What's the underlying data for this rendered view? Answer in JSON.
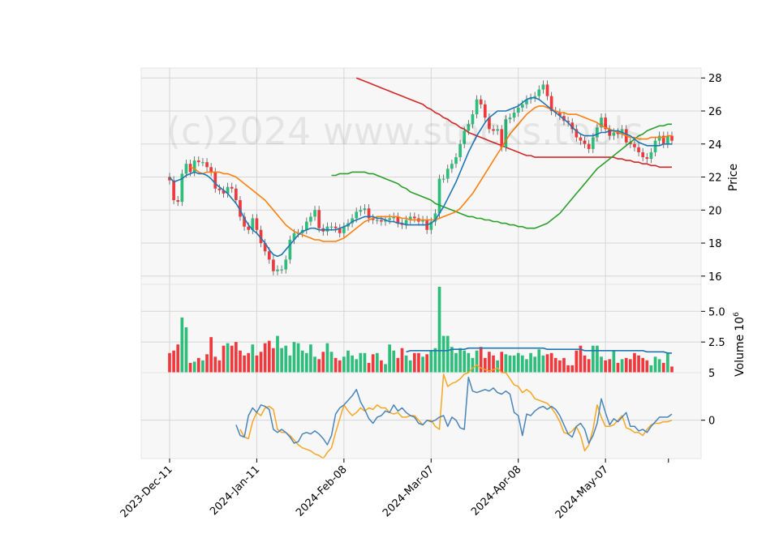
{
  "chart_data": {
    "type": "candlestick",
    "watermark": "(c)2024 www.stocks.tools",
    "colors": {
      "up": "#2ebd7a",
      "down": "#f0393d",
      "bg": "#f7f7f7",
      "grid": "#d6d6d6",
      "ma_short": "#1f77b4",
      "ma_mid": "#ff7f0e",
      "ma_long": "#2ca02c",
      "ma_200": "#d62728",
      "vol_ma": "#1f77b4",
      "macd": "#4a84b8",
      "signal": "#f5a623"
    },
    "x_tick_labels": [
      "2023-Dec-11",
      "2024-Jan-11",
      "2024-Feb-08",
      "2024-Mar-07",
      "2024-Apr-08",
      "2024-May-07"
    ],
    "x_tick_index": [
      0,
      21,
      42,
      63,
      84,
      105
    ],
    "price_panel": {
      "ylabel": "Price",
      "ylim": [
        15.5,
        28.6
      ],
      "yticks": [
        16,
        18,
        20,
        22,
        24,
        26,
        28
      ]
    },
    "volume_panel": {
      "ylabel": "Volume",
      "ylabel_exp": "6",
      "ylim": [
        0,
        7.2
      ],
      "yticks": [
        2.5,
        5.0
      ],
      "tick_labels": [
        "2.5",
        "5.0"
      ]
    },
    "macd_panel": {
      "ylim": [
        -2.5,
        3.1
      ],
      "yticks": [
        0
      ],
      "tick_labels": [
        "0"
      ],
      "top_label": "5"
    },
    "close": [
      21.8,
      20.6,
      20.5,
      22.2,
      22.8,
      22.3,
      23.0,
      22.9,
      22.9,
      22.6,
      22.3,
      21.3,
      21.2,
      21.0,
      21.4,
      21.3,
      20.6,
      19.6,
      19.0,
      18.8,
      19.5,
      18.8,
      18.0,
      17.5,
      17.0,
      16.3,
      16.4,
      16.4,
      17.0,
      18.2,
      18.6,
      18.6,
      18.8,
      19.3,
      19.6,
      20.0,
      18.9,
      18.7,
      19.0,
      19.0,
      18.9,
      18.6,
      19.0,
      19.2,
      19.5,
      19.9,
      20.0,
      20.1,
      19.5,
      19.4,
      19.4,
      19.3,
      19.4,
      19.5,
      19.6,
      19.2,
      19.1,
      19.4,
      19.6,
      19.5,
      19.3,
      19.4,
      18.8,
      19.3,
      19.8,
      21.9,
      21.9,
      22.5,
      22.8,
      23.2,
      24.0,
      24.8,
      25.2,
      25.8,
      26.7,
      26.4,
      25.6,
      24.9,
      24.8,
      24.9,
      23.8,
      25.5,
      25.6,
      25.9,
      26.2,
      26.4,
      26.7,
      26.8,
      26.9,
      27.3,
      27.6,
      26.9,
      26.0,
      25.9,
      25.7,
      25.4,
      25.3,
      24.9,
      24.4,
      24.2,
      24.0,
      23.7,
      24.4,
      25.0,
      25.6,
      24.9,
      24.5,
      24.7,
      24.6,
      24.9,
      24.1,
      24.0,
      23.8,
      23.5,
      23.2,
      23.1,
      23.5,
      24.2,
      24.5,
      24.0,
      24.5,
      24.2
    ],
    "open": [
      22.0,
      21.8,
      20.6,
      20.5,
      22.2,
      22.8,
      22.3,
      23.0,
      22.9,
      22.9,
      22.6,
      22.3,
      21.3,
      21.2,
      21.0,
      21.4,
      21.3,
      20.6,
      19.6,
      19.0,
      18.8,
      19.5,
      18.8,
      18.0,
      17.5,
      17.0,
      16.3,
      16.4,
      16.4,
      17.0,
      18.2,
      18.6,
      18.6,
      18.8,
      19.3,
      19.6,
      20.0,
      18.9,
      18.7,
      19.0,
      19.0,
      18.9,
      18.6,
      19.0,
      19.2,
      19.5,
      19.9,
      20.0,
      20.1,
      19.5,
      19.4,
      19.4,
      19.3,
      19.4,
      19.5,
      19.6,
      19.2,
      19.1,
      19.4,
      19.6,
      19.5,
      19.3,
      19.4,
      18.8,
      19.3,
      19.8,
      21.9,
      21.9,
      22.5,
      22.8,
      23.2,
      24.0,
      24.8,
      25.2,
      25.8,
      26.7,
      26.4,
      25.6,
      24.9,
      24.8,
      24.9,
      23.8,
      25.5,
      25.6,
      25.9,
      26.2,
      26.4,
      26.7,
      26.8,
      26.9,
      27.3,
      27.6,
      26.9,
      26.0,
      25.9,
      25.7,
      25.4,
      25.3,
      24.9,
      24.4,
      24.2,
      24.0,
      23.7,
      24.4,
      25.0,
      25.6,
      24.9,
      24.5,
      24.7,
      24.6,
      24.9,
      24.1,
      24.0,
      23.8,
      23.5,
      23.2,
      23.1,
      23.5,
      24.2,
      24.5,
      24.0,
      24.5
    ],
    "volume": [
      1.6,
      1.8,
      2.3,
      4.5,
      3.7,
      0.8,
      0.9,
      1.2,
      1.0,
      1.5,
      2.9,
      1.3,
      1.0,
      2.2,
      2.4,
      2.2,
      2.5,
      1.8,
      1.4,
      1.6,
      2.3,
      1.4,
      1.7,
      2.4,
      2.6,
      2.0,
      3.0,
      2.0,
      2.2,
      1.4,
      2.5,
      2.4,
      1.8,
      1.6,
      2.3,
      1.3,
      1.1,
      1.7,
      2.4,
      1.7,
      1.2,
      1.0,
      1.3,
      1.8,
      1.4,
      1.1,
      1.6,
      1.6,
      0.8,
      1.5,
      1.6,
      1.0,
      0.7,
      2.3,
      1.8,
      1.2,
      2.0,
      1.4,
      1.0,
      1.6,
      1.6,
      1.3,
      1.5,
      1.8,
      2.0,
      7.0,
      3.0,
      3.0,
      2.1,
      1.6,
      2.0,
      1.8,
      1.6,
      1.2,
      1.8,
      2.1,
      1.2,
      1.7,
      1.4,
      1.0,
      1.7,
      1.5,
      1.4,
      1.4,
      1.6,
      1.4,
      1.1,
      1.6,
      1.3,
      1.9,
      1.4,
      1.5,
      1.6,
      1.2,
      1.0,
      1.2,
      0.6,
      0.6,
      1.8,
      2.2,
      1.4,
      1.1,
      2.2,
      2.2,
      1.3,
      1.0,
      1.1,
      1.8,
      0.8,
      1.1,
      1.2,
      1.1,
      1.6,
      1.4,
      1.2,
      1.0,
      0.6,
      1.3,
      1.1,
      0.8,
      1.6,
      0.5
    ],
    "ma_short": [
      22.0,
      21.7,
      21.8,
      21.9,
      22.1,
      22.2,
      22.3,
      22.2,
      22.2,
      22.1,
      21.9,
      21.6,
      21.4,
      21.2,
      21.0,
      20.7,
      20.4,
      20.0,
      19.5,
      19.1,
      18.8,
      18.6,
      18.3,
      18.0,
      17.6,
      17.3,
      17.2,
      17.3,
      17.6,
      17.9,
      18.2,
      18.5,
      18.7,
      18.8,
      18.9,
      18.9,
      18.8,
      18.8,
      18.8,
      18.8,
      18.8,
      18.9,
      19.0,
      19.1,
      19.3,
      19.4,
      19.5,
      19.6,
      19.6,
      19.6,
      19.5,
      19.5,
      19.4,
      19.3,
      19.3,
      19.2,
      19.2,
      19.1,
      19.1,
      19.1,
      19.1,
      19.1,
      19.1,
      19.2,
      19.4,
      19.8,
      20.2,
      20.7,
      21.2,
      21.7,
      22.3,
      22.9,
      23.5,
      24.0,
      24.5,
      24.9,
      25.3,
      25.6,
      25.8,
      26.0,
      26.0,
      26.0,
      26.1,
      26.2,
      26.3,
      26.5,
      26.7,
      26.8,
      26.8,
      26.7,
      26.5,
      26.3,
      26.1,
      25.9,
      25.7,
      25.5,
      25.3,
      25.0,
      24.8,
      24.6,
      24.5,
      24.5,
      24.5,
      24.6,
      24.7,
      24.7,
      24.8,
      24.8,
      24.8,
      24.7,
      24.6,
      24.5,
      24.3,
      24.1,
      24.0,
      23.9,
      23.9,
      23.9,
      23.9,
      24.0,
      24.0,
      24.0
    ],
    "ma_mid": [
      22.6,
      22.5,
      22.3,
      22.2,
      22.3,
      22.3,
      22.3,
      22.3,
      22.2,
      22.2,
      22.1,
      22.0,
      21.8,
      21.6,
      21.4,
      21.2,
      21.0,
      20.8,
      20.6,
      20.3,
      20.0,
      19.7,
      19.4,
      19.1,
      18.9,
      18.7,
      18.6,
      18.5,
      18.4,
      18.3,
      18.2,
      18.2,
      18.1,
      18.1,
      18.1,
      18.1,
      18.2,
      18.3,
      18.5,
      18.7,
      18.9,
      19.1,
      19.3,
      19.4,
      19.5,
      19.6,
      19.6,
      19.6,
      19.6,
      19.6,
      19.6,
      19.5,
      19.5,
      19.4,
      19.4,
      19.4,
      19.4,
      19.4,
      19.4,
      19.4,
      19.5,
      19.6,
      19.7,
      19.8,
      19.9,
      20.1,
      20.4,
      20.7,
      21.0,
      21.4,
      21.8,
      22.2,
      22.6,
      23.0,
      23.4,
      23.8,
      24.2,
      24.6,
      24.9,
      25.2,
      25.5,
      25.8,
      26.0,
      26.2,
      26.3,
      26.3,
      26.2,
      26.1,
      26.0,
      25.9,
      25.9,
      25.8,
      25.8,
      25.8,
      25.7,
      25.6,
      25.5,
      25.4,
      25.3,
      25.1,
      25.0,
      24.9,
      24.8,
      24.7,
      24.6,
      24.5,
      24.4,
      24.4,
      24.3,
      24.3,
      24.3,
      24.4,
      24.4,
      24.4,
      24.4,
      24.5,
      24.5
    ],
    "ma_long": [
      22.1,
      22.1,
      22.2,
      22.2,
      22.2,
      22.3,
      22.3,
      22.3,
      22.3,
      22.2,
      22.2,
      22.1,
      22.0,
      21.9,
      21.8,
      21.7,
      21.6,
      21.4,
      21.3,
      21.1,
      21.0,
      20.9,
      20.8,
      20.7,
      20.6,
      20.4,
      20.3,
      20.2,
      20.1,
      20.0,
      19.9,
      19.8,
      19.7,
      19.6,
      19.6,
      19.5,
      19.5,
      19.4,
      19.4,
      19.3,
      19.3,
      19.2,
      19.2,
      19.1,
      19.1,
      19.0,
      19.0,
      18.9,
      18.9,
      18.9,
      19.0,
      19.1,
      19.2,
      19.4,
      19.6,
      19.8,
      20.1,
      20.4,
      20.7,
      21.0,
      21.3,
      21.6,
      21.9,
      22.2,
      22.5,
      22.7,
      22.9,
      23.1,
      23.3,
      23.5,
      23.7,
      23.9,
      24.1,
      24.3,
      24.5,
      24.6,
      24.8,
      24.9,
      25.0,
      25.1,
      25.1,
      25.2,
      25.2
    ],
    "ma_200": [
      28.0,
      27.9,
      27.8,
      27.7,
      27.6,
      27.5,
      27.4,
      27.3,
      27.2,
      27.1,
      27.0,
      26.9,
      26.8,
      26.7,
      26.6,
      26.5,
      26.4,
      26.2,
      26.1,
      25.9,
      25.8,
      25.6,
      25.5,
      25.3,
      25.2,
      25.0,
      24.9,
      24.7,
      24.6,
      24.5,
      24.4,
      24.3,
      24.2,
      24.1,
      24.0,
      23.9,
      23.8,
      23.7,
      23.6,
      23.5,
      23.4,
      23.3,
      23.3,
      23.2,
      23.2,
      23.2,
      23.2,
      23.2,
      23.2,
      23.2,
      23.2,
      23.2,
      23.2,
      23.2,
      23.2,
      23.2,
      23.2,
      23.2,
      23.2,
      23.2,
      23.2,
      23.2,
      23.2,
      23.1,
      23.1,
      23.0,
      23.0,
      22.9,
      22.9,
      22.8,
      22.8,
      22.7,
      22.7,
      22.6,
      22.6,
      22.6,
      22.6
    ],
    "vol_ma": [
      1.7,
      1.8,
      1.8,
      1.8,
      1.8,
      1.8,
      1.8,
      1.8,
      1.8,
      1.8,
      1.8,
      1.9,
      1.9,
      1.9,
      1.9,
      2.0,
      2.0,
      2.0,
      2.0,
      2.0,
      2.0,
      2.0,
      2.0,
      2.0,
      2.0,
      2.0,
      2.0,
      2.0,
      2.0,
      2.0,
      2.0,
      2.0,
      2.0,
      2.0,
      1.9,
      1.9,
      1.9,
      1.9,
      1.9,
      1.9,
      1.9,
      1.9,
      1.9,
      1.8,
      1.8,
      1.8,
      1.8,
      1.8,
      1.8,
      1.8,
      1.8,
      1.8,
      1.8,
      1.8,
      1.8,
      1.8,
      1.8,
      1.8,
      1.7,
      1.7,
      1.7,
      1.7,
      1.7,
      1.6,
      1.6
    ],
    "macd": [
      -0.3,
      -1.0,
      -1.1,
      0.3,
      0.8,
      0.5,
      1.0,
      0.9,
      0.7,
      -0.6,
      -0.8,
      -0.6,
      -0.8,
      -1.1,
      -1.5,
      -1.4,
      -0.9,
      -0.8,
      -0.9,
      -0.7,
      -0.9,
      -1.2,
      -1.6,
      -1.0,
      0.4,
      0.8,
      1.0,
      1.3,
      1.6,
      2.0,
      1.2,
      0.7,
      0.1,
      -0.2,
      0.2,
      0.3,
      0.6,
      0.5,
      1.0,
      0.6,
      0.8,
      0.5,
      0.3,
      0.2,
      -0.2,
      -0.3,
      0.0,
      -0.1,
      0.0,
      0.2,
      0.3,
      -0.4,
      0.2,
      0.0,
      -0.5,
      -0.6,
      2.8,
      1.9,
      1.8,
      1.9,
      2.0,
      1.9,
      2.1,
      1.8,
      1.7,
      1.9,
      1.7,
      0.5,
      0.3,
      -1.0,
      0.4,
      0.3,
      0.6,
      0.8,
      0.9,
      0.7,
      0.9,
      0.7,
      0.3,
      -0.3,
      -0.9,
      -1.1,
      -0.4,
      -0.2,
      -0.6,
      -1.5,
      -1.0,
      -0.2,
      1.4,
      0.5,
      -0.3,
      0.1,
      -0.1,
      0.2,
      0.5,
      -0.4,
      -0.4,
      -0.7,
      -0.6,
      -0.8,
      -0.4,
      -0.1,
      0.2,
      0.2,
      0.2,
      0.4
    ],
    "signal": [
      -0.6,
      -1.1,
      -1.2,
      -0.1,
      0.5,
      0.3,
      0.8,
      0.9,
      0.7,
      -0.6,
      -0.8,
      -0.8,
      -1.0,
      -1.3,
      -1.6,
      -1.8,
      -1.9,
      -2.0,
      -2.2,
      -2.3,
      -2.5,
      -2.1,
      -1.8,
      -0.8,
      0.1,
      1.0,
      0.6,
      0.3,
      0.5,
      0.8,
      0.6,
      0.8,
      0.7,
      1.0,
      0.8,
      0.8,
      0.5,
      0.4,
      0.5,
      0.2,
      0.2,
      0.3,
      0.3,
      0.0,
      -0.3,
      0.0,
      0.0,
      -0.4,
      -0.6,
      3.0,
      2.2,
      2.4,
      2.5,
      2.7,
      3.0,
      3.1,
      3.4,
      3.6,
      3.4,
      3.3,
      3.2,
      3.3,
      3.4,
      3.1,
      3.1,
      2.7,
      2.3,
      2.2,
      1.8,
      2.0,
      1.8,
      1.4,
      1.3,
      1.2,
      1.1,
      0.8,
      0.4,
      -0.1,
      -0.8,
      -0.9,
      -0.7,
      -0.4,
      -1.0,
      -2.0,
      -1.6,
      -0.6,
      1.0,
      0.2,
      -0.4,
      -0.4,
      -0.3,
      0.0,
      0.3,
      -0.5,
      -0.6,
      -0.8,
      -0.8,
      -1.0,
      -0.6,
      -0.3,
      -0.2,
      -0.2,
      -0.1,
      -0.1,
      0.0
    ]
  }
}
